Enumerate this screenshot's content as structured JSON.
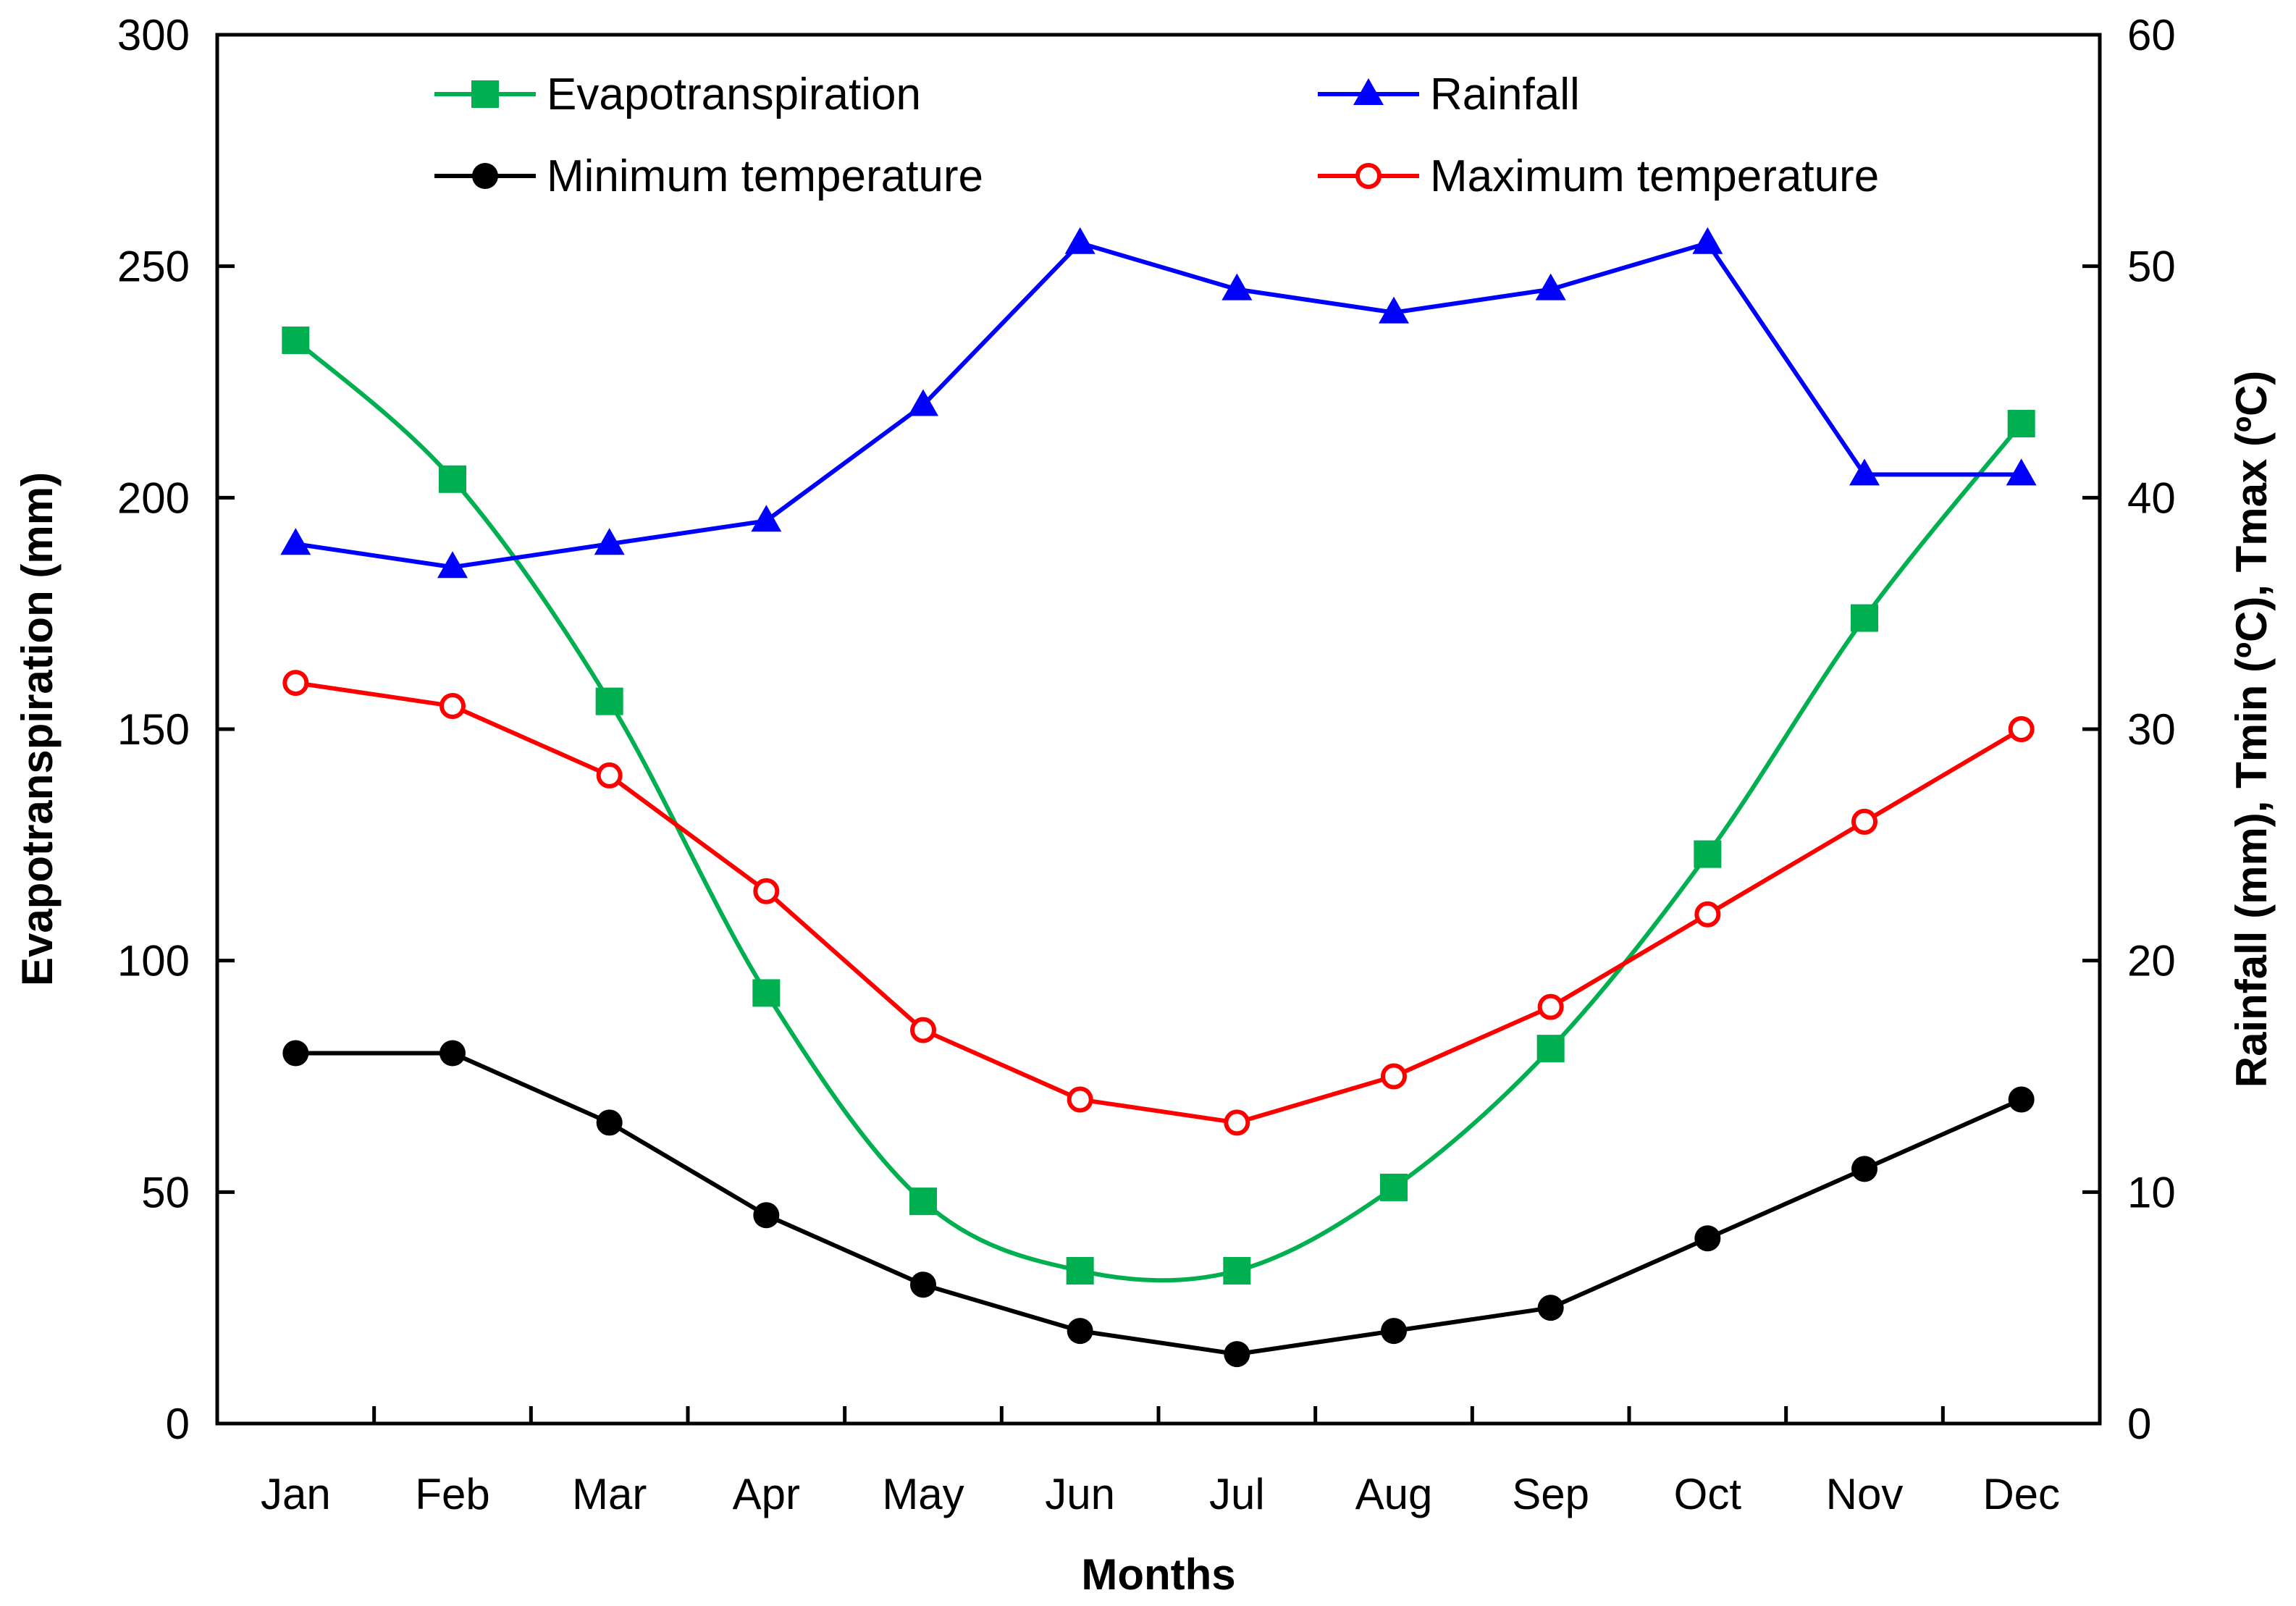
{
  "chart_data": {
    "type": "line",
    "categories": [
      "Jan",
      "Feb",
      "Mar",
      "Apr",
      "May",
      "Jun",
      "Jul",
      "Aug",
      "Sep",
      "Oct",
      "Nov",
      "Dec"
    ],
    "xlabel": "Months",
    "ylabel": "Evapotranspiration (mm)",
    "y2label": "Rainfall (mm), Tmin (ºC), Tmax (ºC)",
    "ylim": [
      0,
      300
    ],
    "y2lim": [
      0,
      60
    ],
    "yticks": [
      "0",
      "50",
      "100",
      "150",
      "200",
      "250",
      "300"
    ],
    "y2ticks": [
      "0",
      "10",
      "20",
      "30",
      "40",
      "50",
      "60"
    ],
    "grid": false,
    "legend_position": "top",
    "series": [
      {
        "name": "Evapotranspiration",
        "axis": "left",
        "color": "#00b050",
        "marker": "square",
        "smooth": true,
        "values": [
          234,
          204,
          156,
          93,
          48,
          33,
          33,
          51,
          81,
          123,
          174,
          216
        ]
      },
      {
        "name": "Rainfall",
        "axis": "right",
        "color": "#0000ff",
        "marker": "triangle",
        "smooth": false,
        "values": [
          38,
          37,
          38,
          39,
          44,
          51,
          49,
          48,
          49,
          51,
          41,
          41
        ]
      },
      {
        "name": "Minimum temperature",
        "axis": "right",
        "color": "#000000",
        "marker": "circle-filled",
        "smooth": false,
        "values": [
          16,
          16,
          13,
          9,
          6,
          4,
          3,
          4,
          5,
          8,
          11,
          14
        ]
      },
      {
        "name": "Maximum temperature",
        "axis": "right",
        "color": "#ff0000",
        "marker": "circle-open",
        "smooth": false,
        "values": [
          32,
          31,
          28,
          23,
          17,
          14,
          13,
          15,
          18,
          22,
          26,
          30
        ]
      }
    ]
  }
}
